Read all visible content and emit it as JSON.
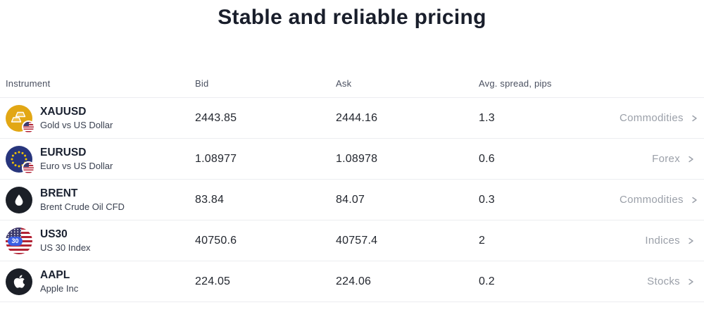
{
  "page": {
    "title": "Stable and reliable pricing"
  },
  "table": {
    "columns": [
      "Instrument",
      "Bid",
      "Ask",
      "Avg. spread, pips"
    ],
    "rows": [
      {
        "symbol": "XAUUSD",
        "name": "Gold vs US Dollar",
        "bid": "2443.85",
        "ask": "2444.16",
        "spread": "1.3",
        "category": "Commodities",
        "icon": "gold-us-flag-icon"
      },
      {
        "symbol": "EURUSD",
        "name": "Euro vs US Dollar",
        "bid": "1.08977",
        "ask": "1.08978",
        "spread": "0.6",
        "category": "Forex",
        "icon": "eu-us-flag-icon"
      },
      {
        "symbol": "BRENT",
        "name": "Brent Crude Oil CFD",
        "bid": "83.84",
        "ask": "84.07",
        "spread": "0.3",
        "category": "Commodities",
        "icon": "oil-drop-icon"
      },
      {
        "symbol": "US30",
        "name": "US 30 Index",
        "bid": "40750.6",
        "ask": "40757.4",
        "spread": "2",
        "category": "Indices",
        "icon": "us-flag-30-icon",
        "icon_badge": "30"
      },
      {
        "symbol": "AAPL",
        "name": "Apple Inc",
        "bid": "224.05",
        "ask": "224.06",
        "spread": "0.2",
        "category": "Stocks",
        "icon": "apple-logo-icon"
      }
    ]
  },
  "colors": {
    "title_text": "#191e2b",
    "header_text": "#4a5060",
    "value_text": "#23272f",
    "link_text": "#9ba0a9",
    "row_border": "#ecedf0",
    "gold_circle": "#e2a714",
    "eu_circle": "#27357c",
    "dark_circle": "#1b1f27",
    "flag_red": "#b22234",
    "flag_blue": "#3c3b6e",
    "badge_blue": "#3a5fe5"
  }
}
